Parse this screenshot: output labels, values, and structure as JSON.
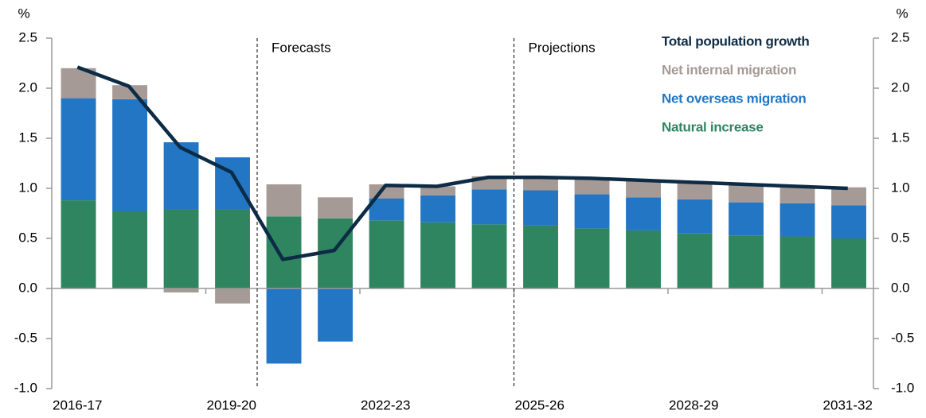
{
  "chart_data": {
    "type": "stacked-bar-line",
    "y_label": "%",
    "y2_label": "%",
    "categories": [
      "2016-17",
      null,
      null,
      "2019-20",
      null,
      null,
      "2022-23",
      null,
      null,
      "2025-26",
      null,
      null,
      "2028-29",
      null,
      null,
      "2031-32"
    ],
    "series": [
      {
        "name": "Natural increase",
        "color": "#2e8560",
        "kind": "bar",
        "values": [
          0.88,
          0.77,
          0.79,
          0.79,
          0.72,
          0.7,
          0.68,
          0.66,
          0.64,
          0.63,
          0.6,
          0.58,
          0.55,
          0.53,
          0.52,
          0.5
        ]
      },
      {
        "name": "Net overseas migration",
        "color": "#2276c3",
        "kind": "bar",
        "values": [
          1.02,
          1.12,
          0.67,
          0.52,
          -0.75,
          -0.53,
          0.22,
          0.27,
          0.35,
          0.35,
          0.34,
          0.33,
          0.34,
          0.33,
          0.33,
          0.33
        ]
      },
      {
        "name": "Net internal migration",
        "color": "#a59a95",
        "kind": "bar",
        "values": [
          0.3,
          0.14,
          -0.04,
          -0.15,
          0.32,
          0.21,
          0.14,
          0.09,
          0.13,
          0.13,
          0.15,
          0.17,
          0.17,
          0.18,
          0.17,
          0.18
        ]
      },
      {
        "name": "Total population growth",
        "color": "#0d2b45",
        "kind": "line",
        "values": [
          2.21,
          2.02,
          1.41,
          1.16,
          0.29,
          0.38,
          1.03,
          1.02,
          1.11,
          1.11,
          1.1,
          1.08,
          1.06,
          1.04,
          1.02,
          1.0
        ]
      }
    ],
    "annotations": [
      "Forecasts",
      "Projections"
    ],
    "ylim": [
      -1,
      2.5
    ],
    "yticks": [
      {
        "value": -1,
        "label": "-1.0"
      },
      -0.5,
      {
        "value": 0,
        "label": "0.0"
      },
      0.5,
      {
        "value": 1,
        "label": "1.0"
      },
      1.5,
      {
        "value": 2,
        "label": "2.0"
      },
      2.5
    ],
    "y2lim": [
      -1,
      2.5
    ],
    "y2ticks": [
      {
        "value": -1,
        "label": "-1.0"
      },
      -0.5,
      {
        "value": 0,
        "label": "0.0"
      },
      0.5,
      {
        "value": 1,
        "label": "1.0"
      },
      1.5,
      {
        "value": 2,
        "label": "2.0"
      },
      2.5
    ]
  }
}
